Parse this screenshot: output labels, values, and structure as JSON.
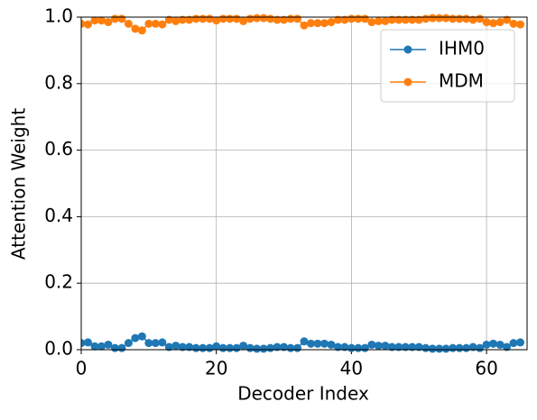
{
  "chart_data": {
    "type": "line",
    "x_label": "Decoder Index",
    "y_label": "Attention Weight",
    "x": [
      0,
      1,
      2,
      3,
      4,
      5,
      6,
      7,
      8,
      9,
      10,
      11,
      12,
      13,
      14,
      15,
      16,
      17,
      18,
      19,
      20,
      21,
      22,
      23,
      24,
      25,
      26,
      27,
      28,
      29,
      30,
      31,
      32,
      33,
      34,
      35,
      36,
      37,
      38,
      39,
      40,
      41,
      42,
      43,
      44,
      45,
      46,
      47,
      48,
      49,
      50,
      51,
      52,
      53,
      54,
      55,
      56,
      57,
      58,
      59,
      60,
      61,
      62,
      63,
      64,
      65
    ],
    "series": [
      {
        "name": "IHM0",
        "color": "#1f77b4",
        "values": [
          0.02,
          0.022,
          0.01,
          0.01,
          0.015,
          0.005,
          0.005,
          0.02,
          0.035,
          0.04,
          0.02,
          0.02,
          0.022,
          0.008,
          0.012,
          0.008,
          0.008,
          0.005,
          0.005,
          0.005,
          0.01,
          0.005,
          0.005,
          0.005,
          0.012,
          0.005,
          0.003,
          0.003,
          0.005,
          0.008,
          0.008,
          0.005,
          0.005,
          0.025,
          0.018,
          0.018,
          0.018,
          0.015,
          0.008,
          0.008,
          0.005,
          0.005,
          0.005,
          0.015,
          0.012,
          0.012,
          0.008,
          0.008,
          0.008,
          0.008,
          0.008,
          0.005,
          0.003,
          0.003,
          0.003,
          0.005,
          0.005,
          0.005,
          0.008,
          0.005,
          0.015,
          0.018,
          0.015,
          0.008,
          0.02,
          0.022
        ]
      },
      {
        "name": "MDM",
        "color": "#ff7f0e",
        "values": [
          0.98,
          0.978,
          0.99,
          0.99,
          0.985,
          0.995,
          0.995,
          0.98,
          0.965,
          0.96,
          0.98,
          0.98,
          0.978,
          0.992,
          0.988,
          0.992,
          0.992,
          0.995,
          0.995,
          0.995,
          0.99,
          0.995,
          0.995,
          0.995,
          0.988,
          0.995,
          0.997,
          0.997,
          0.995,
          0.992,
          0.992,
          0.995,
          0.995,
          0.975,
          0.982,
          0.982,
          0.982,
          0.985,
          0.992,
          0.992,
          0.995,
          0.995,
          0.995,
          0.985,
          0.988,
          0.988,
          0.992,
          0.992,
          0.992,
          0.992,
          0.992,
          0.995,
          0.997,
          0.997,
          0.997,
          0.995,
          0.995,
          0.995,
          0.992,
          0.995,
          0.985,
          0.982,
          0.985,
          0.992,
          0.98,
          0.978
        ]
      }
    ],
    "xlim": [
      0,
      66
    ],
    "ylim": [
      0,
      1
    ],
    "xticks": [
      0,
      20,
      40,
      60
    ],
    "yticks": [
      {
        "value": 0,
        "label": "0.0"
      },
      {
        "value": 0.2,
        "label": "0.2"
      },
      {
        "value": 0.4,
        "label": "0.4"
      },
      {
        "value": 0.6,
        "label": "0.6"
      },
      {
        "value": 0.8,
        "label": "0.8"
      },
      {
        "value": 1,
        "label": "1.0"
      }
    ],
    "grid": true,
    "legend": "upper right"
  }
}
